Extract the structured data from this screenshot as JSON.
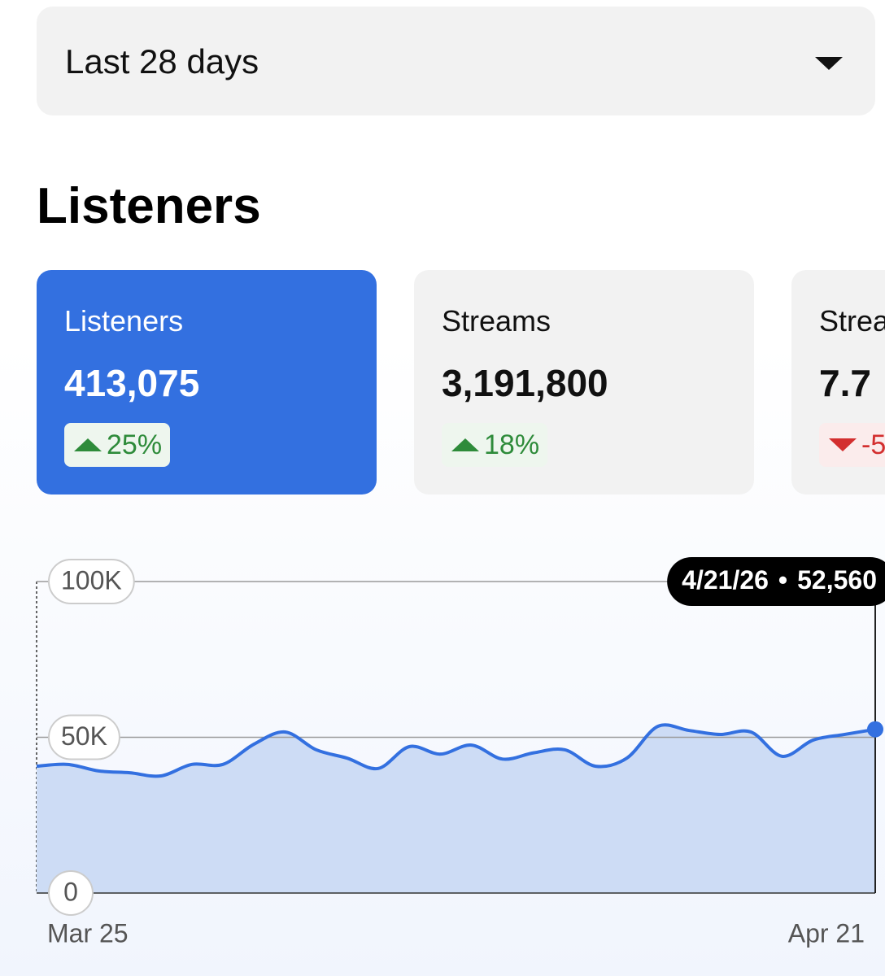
{
  "dropdown": {
    "label": "Last 28 days"
  },
  "heading": "Listeners",
  "cards": [
    {
      "label": "Listeners",
      "value": "413,075",
      "change": "25%",
      "direction": "up"
    },
    {
      "label": "Streams",
      "value": "3,191,800",
      "change": "18%",
      "direction": "up"
    },
    {
      "label": "Strea",
      "value": "7.7",
      "change": "-5",
      "direction": "down"
    }
  ],
  "chart_data": {
    "type": "area",
    "categories": [
      "Mar 25",
      null,
      null,
      null,
      null,
      null,
      null,
      null,
      null,
      null,
      null,
      null,
      null,
      null,
      null,
      null,
      null,
      null,
      null,
      null,
      null,
      null,
      null,
      null,
      null,
      null,
      null,
      "Apr 21"
    ],
    "series": [
      {
        "name": "Listeners",
        "color": "#3370e0",
        "values": [
          40700,
          41300,
          39200,
          38600,
          37600,
          41300,
          41300,
          47800,
          51700,
          46000,
          43300,
          40000,
          47000,
          44600,
          47500,
          43000,
          45000,
          46000,
          40700,
          43300,
          53500,
          52200,
          50900,
          51700,
          43900,
          49100,
          50900,
          52560
        ]
      }
    ],
    "ylim": [
      0,
      100000
    ],
    "yticks": [
      0,
      {
        "value": 50000,
        "label": "50K"
      },
      {
        "value": 100000,
        "label": "100K"
      }
    ],
    "grid": true,
    "tooltip": {
      "date": "4/21/26",
      "separator": "•",
      "value_label": "52,560"
    }
  }
}
